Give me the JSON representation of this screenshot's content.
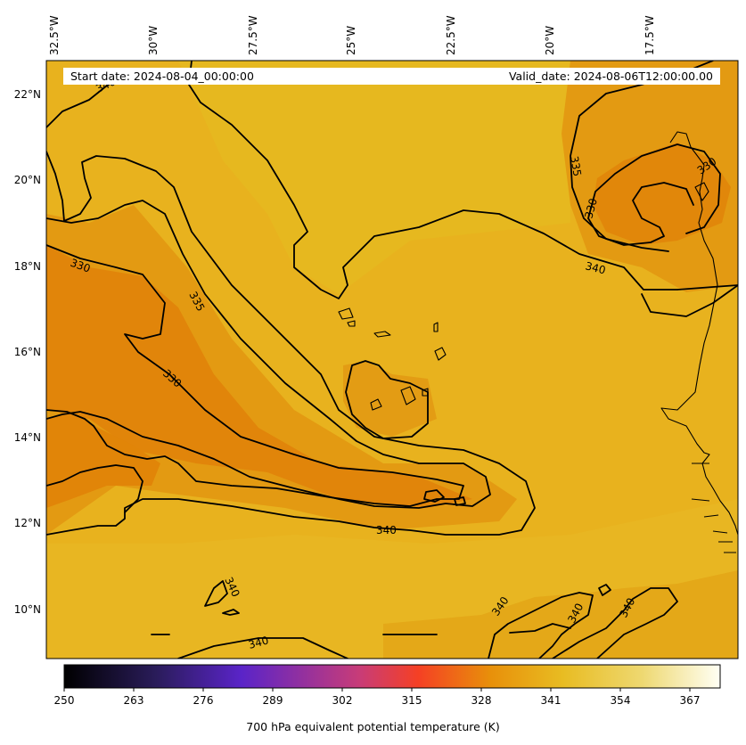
{
  "header": {
    "start_date": "Start date: 2024-08-04_00:00:00",
    "valid_date": "Valid_date: 2024-08-06T12:00:00.00"
  },
  "map": {
    "longitude_labels": [
      "32.5°W",
      "30°W",
      "27.5°W",
      "25°W",
      "22.5°W",
      "20°W",
      "17.5°W"
    ],
    "latitude_labels": [
      "22°N",
      "20°N",
      "18°N",
      "16°N",
      "14°N",
      "12°N",
      "10°N"
    ],
    "contour_labels": [
      "340",
      "330",
      "335",
      "330",
      "335",
      "330",
      "330",
      "340",
      "340",
      "340",
      "340",
      "340",
      "340"
    ],
    "field_colors": {
      "low": "#e07f08",
      "mid": "#e8a516",
      "high": "#e8bd24"
    }
  },
  "colorbar": {
    "title": "700 hPa equivalent potential temperature (K)",
    "ticks": [
      "250",
      "263",
      "276",
      "289",
      "302",
      "315",
      "328",
      "341",
      "354",
      "367"
    ],
    "range": [
      250,
      373
    ],
    "colormap_stops": [
      "#000000",
      "#2a1c5a",
      "#5a24c8",
      "#c83c78",
      "#f54024",
      "#e8900a",
      "#e8bc22",
      "#eed870",
      "#fffff4"
    ]
  }
}
